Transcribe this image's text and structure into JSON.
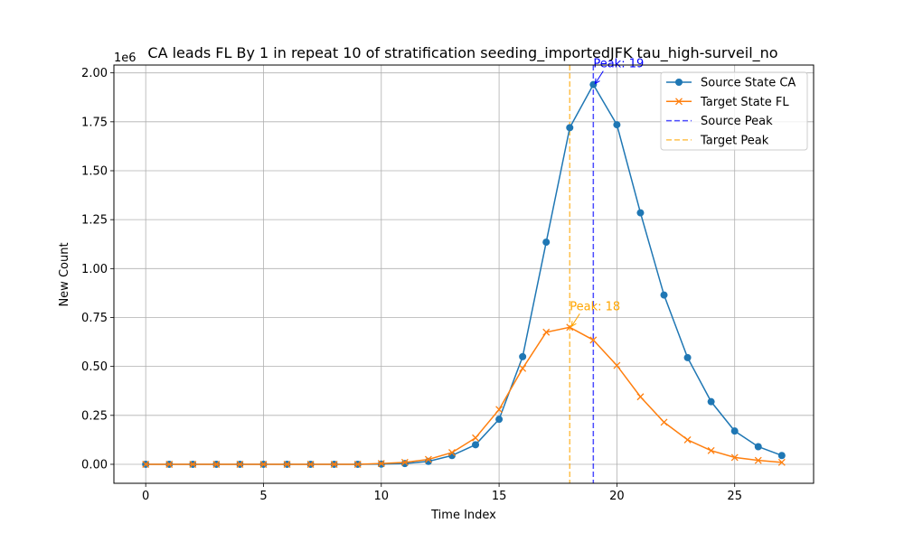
{
  "chart_data": {
    "type": "line",
    "title": "CA leads FL By 1 in repeat 10 of stratification seeding_importedJFK tau_high-surveil_no",
    "xlabel": "Time Index",
    "ylabel": "New Count",
    "y_offset_label": "1e6",
    "xlim": [
      -1.35,
      28.35
    ],
    "ylim": [
      -0.097,
      2.04
    ],
    "y_unit_multiplier": 1000000,
    "x_ticks": [
      0,
      5,
      10,
      15,
      20,
      25
    ],
    "x_tick_labels": [
      "0",
      "5",
      "10",
      "15",
      "20",
      "25"
    ],
    "y_ticks": [
      0,
      0.25,
      0.5,
      0.75,
      1.0,
      1.25,
      1.5,
      1.75,
      2.0
    ],
    "y_tick_labels": [
      "0.00",
      "0.25",
      "0.50",
      "0.75",
      "1.00",
      "1.25",
      "1.50",
      "1.75",
      "2.00"
    ],
    "grid": true,
    "legend_position": "top-right",
    "x": [
      0,
      1,
      2,
      3,
      4,
      5,
      6,
      7,
      8,
      9,
      10,
      11,
      12,
      13,
      14,
      15,
      16,
      17,
      18,
      19,
      20,
      21,
      22,
      23,
      24,
      25,
      26,
      27
    ],
    "series": [
      {
        "name": "Source State CA",
        "color": "#1f77b4",
        "marker": "circle",
        "values": [
          0.0,
          0.0,
          0.0,
          0.0,
          0.0,
          0.0,
          0.0,
          0.0,
          0.0,
          0.0,
          0.001,
          0.004,
          0.015,
          0.045,
          0.1,
          0.23,
          0.55,
          1.135,
          1.72,
          1.94,
          1.735,
          1.285,
          0.865,
          0.545,
          0.32,
          0.17,
          0.09,
          0.045
        ]
      },
      {
        "name": "Target State FL",
        "color": "#ff7f0e",
        "marker": "x",
        "values": [
          0.0,
          0.0,
          0.0,
          0.0,
          0.0,
          0.0,
          0.0,
          0.0,
          0.0,
          0.0,
          0.004,
          0.01,
          0.025,
          0.06,
          0.135,
          0.28,
          0.49,
          0.675,
          0.7,
          0.635,
          0.505,
          0.345,
          0.215,
          0.125,
          0.07,
          0.035,
          0.02,
          0.01
        ]
      }
    ],
    "reference_lines": [
      {
        "name": "Source Peak",
        "x": 19,
        "color": "#0000ff",
        "style": "dashed"
      },
      {
        "name": "Target Peak",
        "x": 18,
        "color": "#ffa500",
        "style": "dashed"
      }
    ],
    "annotations": [
      {
        "text": "Peak: 19",
        "x": 19,
        "y": 1.94,
        "color": "#0000ff",
        "arrow": true
      },
      {
        "text": "Peak: 18",
        "x": 18,
        "y": 0.7,
        "color": "#ffa500",
        "arrow": true
      }
    ],
    "legend": [
      "Source State CA",
      "Target State FL",
      "Source Peak",
      "Target Peak"
    ]
  }
}
